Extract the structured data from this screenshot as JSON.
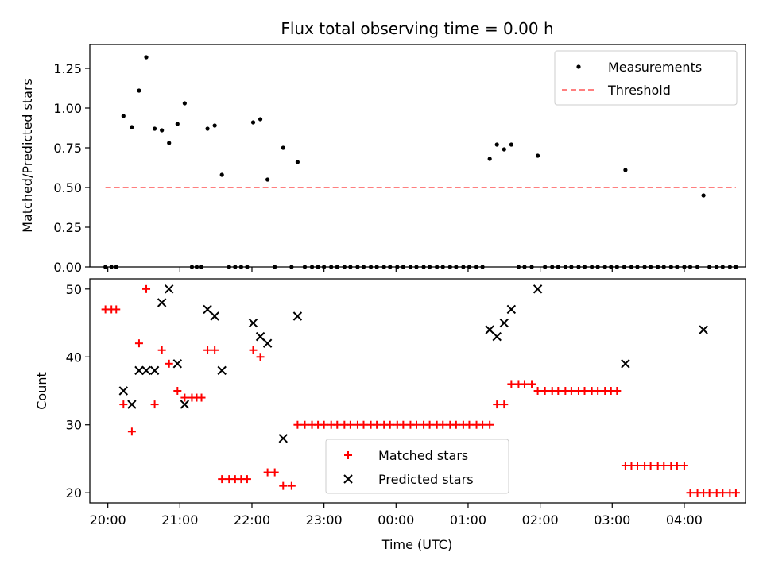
{
  "chart_data": [
    {
      "type": "scatter",
      "title": "Flux total observing time = 0.00 h",
      "xlabel": "",
      "ylabel": "Matched/Predicted stars",
      "xlim": [
        "19:45",
        "04:51"
      ],
      "ylim": [
        0,
        1.4
      ],
      "yticks": [
        0.0,
        0.25,
        0.5,
        0.75,
        1.0,
        1.25
      ],
      "ytick_labels": [
        "0.00",
        "0.25",
        "0.50",
        "0.75",
        "1.00",
        "1.25"
      ],
      "legend": {
        "placement": "upper right",
        "entries": [
          "Measurements",
          "Threshold"
        ]
      },
      "series": [
        {
          "name": "Measurements",
          "marker": "dot",
          "color": "#000000",
          "points": [
            [
              "19:58",
              0
            ],
            [
              "20:03",
              0
            ],
            [
              "20:07",
              0
            ],
            [
              "20:13",
              0.95
            ],
            [
              "20:20",
              0.88
            ],
            [
              "20:26",
              1.11
            ],
            [
              "20:32",
              1.32
            ],
            [
              "20:39",
              0.87
            ],
            [
              "20:45",
              0.86
            ],
            [
              "20:51",
              0.78
            ],
            [
              "20:58",
              0.9
            ],
            [
              "21:04",
              1.03
            ],
            [
              "21:10",
              0
            ],
            [
              "21:14",
              0
            ],
            [
              "21:18",
              0
            ],
            [
              "21:23",
              0.87
            ],
            [
              "21:29",
              0.89
            ],
            [
              "21:35",
              0.58
            ],
            [
              "21:41",
              0
            ],
            [
              "21:46",
              0
            ],
            [
              "21:51",
              0
            ],
            [
              "21:56",
              0
            ],
            [
              "22:01",
              0.91
            ],
            [
              "22:07",
              0.93
            ],
            [
              "22:13",
              0.55
            ],
            [
              "22:19",
              0
            ],
            [
              "22:26",
              0.75
            ],
            [
              "22:33",
              0
            ],
            [
              "22:38",
              0.66
            ],
            [
              "22:44",
              0
            ],
            [
              "22:50",
              0
            ],
            [
              "22:55",
              0
            ],
            [
              "23:00",
              0
            ],
            [
              "23:06",
              0
            ],
            [
              "23:11",
              0
            ],
            [
              "23:17",
              0
            ],
            [
              "23:22",
              0
            ],
            [
              "23:28",
              0
            ],
            [
              "23:33",
              0
            ],
            [
              "23:39",
              0
            ],
            [
              "23:44",
              0
            ],
            [
              "23:50",
              0
            ],
            [
              "23:55",
              0
            ],
            [
              "00:01",
              0
            ],
            [
              "00:06",
              0
            ],
            [
              "00:12",
              0
            ],
            [
              "00:17",
              0
            ],
            [
              "00:23",
              0
            ],
            [
              "00:28",
              0
            ],
            [
              "00:34",
              0
            ],
            [
              "00:39",
              0
            ],
            [
              "00:45",
              0
            ],
            [
              "00:50",
              0
            ],
            [
              "00:56",
              0
            ],
            [
              "01:01",
              0
            ],
            [
              "01:07",
              0
            ],
            [
              "01:12",
              0
            ],
            [
              "01:18",
              0.68
            ],
            [
              "01:24",
              0.77
            ],
            [
              "01:30",
              0.74
            ],
            [
              "01:36",
              0.77
            ],
            [
              "01:42",
              0
            ],
            [
              "01:47",
              0
            ],
            [
              "01:53",
              0
            ],
            [
              "01:58",
              0.7
            ],
            [
              "02:04",
              0
            ],
            [
              "02:10",
              0
            ],
            [
              "02:15",
              0
            ],
            [
              "02:21",
              0
            ],
            [
              "02:26",
              0
            ],
            [
              "02:32",
              0
            ],
            [
              "02:37",
              0
            ],
            [
              "02:43",
              0
            ],
            [
              "02:48",
              0
            ],
            [
              "02:54",
              0
            ],
            [
              "02:59",
              0
            ],
            [
              "03:04",
              0
            ],
            [
              "03:10",
              0
            ],
            [
              "03:11",
              0.61
            ],
            [
              "03:16",
              0
            ],
            [
              "03:21",
              0
            ],
            [
              "03:27",
              0
            ],
            [
              "03:32",
              0
            ],
            [
              "03:38",
              0
            ],
            [
              "03:43",
              0
            ],
            [
              "03:49",
              0
            ],
            [
              "03:54",
              0
            ],
            [
              "04:00",
              0
            ],
            [
              "04:05",
              0
            ],
            [
              "04:11",
              0
            ],
            [
              "04:16",
              0.45
            ],
            [
              "04:21",
              0
            ],
            [
              "04:27",
              0
            ],
            [
              "04:32",
              0
            ],
            [
              "04:38",
              0
            ],
            [
              "04:43",
              0
            ]
          ]
        },
        {
          "name": "Threshold",
          "type": "line",
          "style": "dashed",
          "color": "#ff7f7f",
          "points": [
            [
              "19:58",
              0.5
            ],
            [
              "04:43",
              0.5
            ]
          ]
        }
      ]
    },
    {
      "type": "scatter",
      "title": "",
      "xlabel": "Time (UTC)",
      "ylabel": "Count",
      "xlim": [
        "19:45",
        "04:51"
      ],
      "ylim": [
        18.5,
        51.5
      ],
      "yticks": [
        20,
        30,
        40,
        50
      ],
      "ytick_labels": [
        "20",
        "30",
        "40",
        "50"
      ],
      "xticks": [
        "20:00",
        "21:00",
        "22:00",
        "23:00",
        "00:00",
        "01:00",
        "02:00",
        "03:00",
        "04:00"
      ],
      "legend": {
        "placement": "lower center",
        "entries": [
          "Matched stars",
          "Predicted stars"
        ]
      },
      "series": [
        {
          "name": "Matched stars",
          "marker": "plus",
          "color": "#ff0000",
          "points": [
            [
              "19:58",
              47
            ],
            [
              "20:03",
              47
            ],
            [
              "20:07",
              47
            ],
            [
              "20:13",
              33
            ],
            [
              "20:20",
              29
            ],
            [
              "20:26",
              42
            ],
            [
              "20:32",
              50
            ],
            [
              "20:39",
              33
            ],
            [
              "20:45",
              41
            ],
            [
              "20:51",
              39
            ],
            [
              "20:58",
              35
            ],
            [
              "21:04",
              34
            ],
            [
              "21:10",
              34
            ],
            [
              "21:14",
              34
            ],
            [
              "21:18",
              34
            ],
            [
              "21:23",
              41
            ],
            [
              "21:29",
              41
            ],
            [
              "21:35",
              22
            ],
            [
              "21:41",
              22
            ],
            [
              "21:46",
              22
            ],
            [
              "21:51",
              22
            ],
            [
              "21:56",
              22
            ],
            [
              "22:01",
              41
            ],
            [
              "22:07",
              40
            ],
            [
              "22:13",
              23
            ],
            [
              "22:19",
              23
            ],
            [
              "22:26",
              21
            ],
            [
              "22:33",
              21
            ],
            [
              "22:38",
              30
            ],
            [
              "22:44",
              30
            ],
            [
              "22:50",
              30
            ],
            [
              "22:55",
              30
            ],
            [
              "23:00",
              30
            ],
            [
              "23:06",
              30
            ],
            [
              "23:11",
              30
            ],
            [
              "23:17",
              30
            ],
            [
              "23:22",
              30
            ],
            [
              "23:28",
              30
            ],
            [
              "23:33",
              30
            ],
            [
              "23:39",
              30
            ],
            [
              "23:44",
              30
            ],
            [
              "23:50",
              30
            ],
            [
              "23:55",
              30
            ],
            [
              "00:01",
              30
            ],
            [
              "00:06",
              30
            ],
            [
              "00:12",
              30
            ],
            [
              "00:17",
              30
            ],
            [
              "00:23",
              30
            ],
            [
              "00:28",
              30
            ],
            [
              "00:34",
              30
            ],
            [
              "00:39",
              30
            ],
            [
              "00:45",
              30
            ],
            [
              "00:50",
              30
            ],
            [
              "00:56",
              30
            ],
            [
              "01:01",
              30
            ],
            [
              "01:07",
              30
            ],
            [
              "01:12",
              30
            ],
            [
              "01:18",
              30
            ],
            [
              "01:24",
              33
            ],
            [
              "01:30",
              33
            ],
            [
              "01:36",
              36
            ],
            [
              "01:42",
              36
            ],
            [
              "01:47",
              36
            ],
            [
              "01:53",
              36
            ],
            [
              "01:58",
              35
            ],
            [
              "02:04",
              35
            ],
            [
              "02:10",
              35
            ],
            [
              "02:15",
              35
            ],
            [
              "02:21",
              35
            ],
            [
              "02:26",
              35
            ],
            [
              "02:32",
              35
            ],
            [
              "02:37",
              35
            ],
            [
              "02:43",
              35
            ],
            [
              "02:48",
              35
            ],
            [
              "02:54",
              35
            ],
            [
              "02:59",
              35
            ],
            [
              "03:04",
              35
            ],
            [
              "03:11",
              24
            ],
            [
              "03:16",
              24
            ],
            [
              "03:21",
              24
            ],
            [
              "03:27",
              24
            ],
            [
              "03:32",
              24
            ],
            [
              "03:38",
              24
            ],
            [
              "03:43",
              24
            ],
            [
              "03:49",
              24
            ],
            [
              "03:54",
              24
            ],
            [
              "04:00",
              24
            ],
            [
              "04:05",
              20
            ],
            [
              "04:11",
              20
            ],
            [
              "04:16",
              20
            ],
            [
              "04:21",
              20
            ],
            [
              "04:27",
              20
            ],
            [
              "04:32",
              20
            ],
            [
              "04:38",
              20
            ],
            [
              "04:43",
              20
            ]
          ]
        },
        {
          "name": "Predicted stars",
          "marker": "x",
          "color": "#000000",
          "points": [
            [
              "20:13",
              35
            ],
            [
              "20:20",
              33
            ],
            [
              "20:26",
              38
            ],
            [
              "20:32",
              38
            ],
            [
              "20:39",
              38
            ],
            [
              "20:45",
              48
            ],
            [
              "20:51",
              50
            ],
            [
              "20:58",
              39
            ],
            [
              "21:04",
              33
            ],
            [
              "21:23",
              47
            ],
            [
              "21:29",
              46
            ],
            [
              "21:35",
              38
            ],
            [
              "22:01",
              45
            ],
            [
              "22:07",
              43
            ],
            [
              "22:13",
              42
            ],
            [
              "22:26",
              28
            ],
            [
              "22:38",
              46
            ],
            [
              "01:18",
              44
            ],
            [
              "01:24",
              43
            ],
            [
              "01:30",
              45
            ],
            [
              "01:36",
              47
            ],
            [
              "01:58",
              50
            ],
            [
              "03:11",
              39
            ],
            [
              "04:16",
              44
            ]
          ]
        }
      ]
    }
  ]
}
